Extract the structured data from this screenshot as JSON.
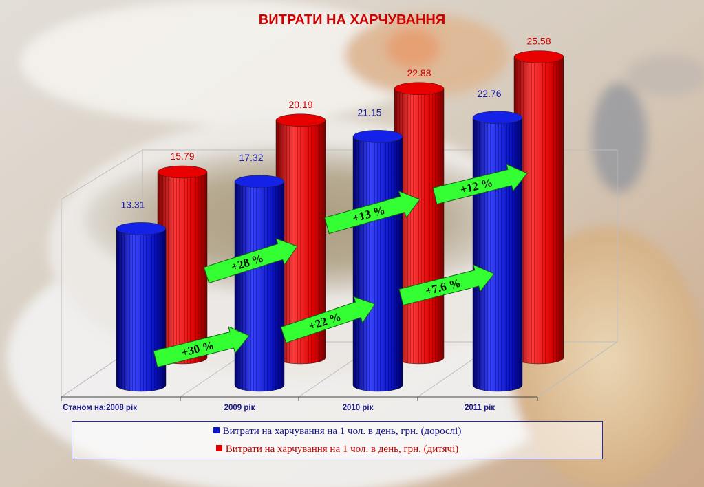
{
  "title": "ВИТРАТИ НА ХАРЧУВАННЯ",
  "chart_data": {
    "type": "bar",
    "categories": [
      "Станом на:2008 рік",
      "2009 рік",
      "2010 рік",
      "2011 рік"
    ],
    "series": [
      {
        "name": "Витрати на харчування на 1 чол. в день, грн. (дорослі)",
        "values": [
          13.31,
          17.32,
          21.15,
          22.76
        ],
        "color": "#0a14c8"
      },
      {
        "name": "Витрати на харчування на 1 чол. в день, грн. (дитячі)",
        "values": [
          15.79,
          20.19,
          22.88,
          25.58
        ],
        "color": "#e00000"
      }
    ],
    "value_labels": {
      "series_0": [
        "13.31",
        "17.32",
        "21.15",
        "22.76"
      ],
      "series_1": [
        "15.79",
        "20.19",
        "22.88",
        "25.58"
      ]
    },
    "growth_annotations": {
      "series_0": [
        "+30 %",
        "+22 %",
        "+7.6 %"
      ],
      "series_1": [
        "+28 %",
        "+13 %",
        "+12 %"
      ]
    },
    "label_colors": {
      "series_0": "#1a1aa8",
      "series_1": "#d00000"
    },
    "arrow_color": "#33ff33",
    "legend_position": "bottom"
  }
}
